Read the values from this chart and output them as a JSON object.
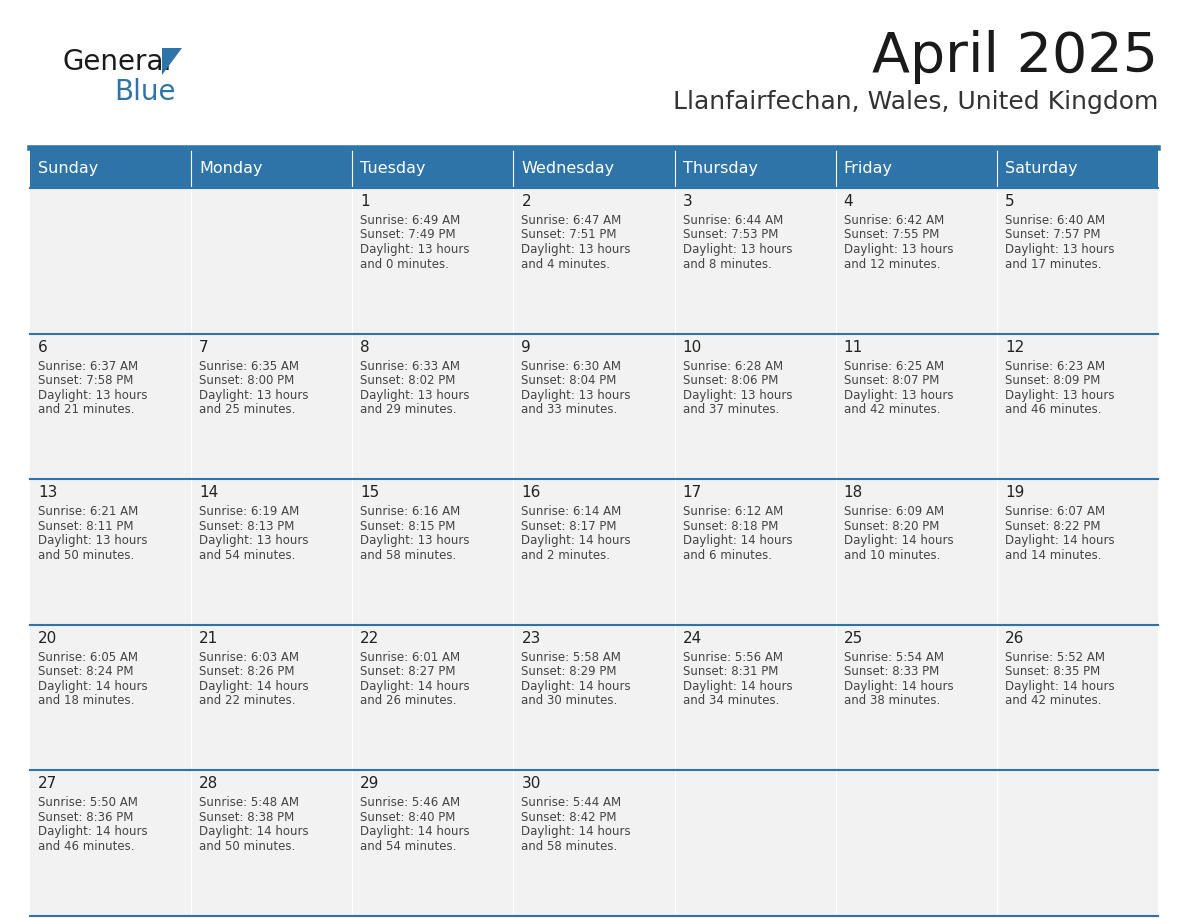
{
  "title": "April 2025",
  "subtitle": "Llanfairfechan, Wales, United Kingdom",
  "days_of_week": [
    "Sunday",
    "Monday",
    "Tuesday",
    "Wednesday",
    "Thursday",
    "Friday",
    "Saturday"
  ],
  "header_bg": "#2E74A8",
  "header_text": "#FFFFFF",
  "cell_bg": "#F2F2F2",
  "cell_text": "#333333",
  "border_color": "#2E74A8",
  "title_color": "#1a1a1a",
  "subtitle_color": "#333333",
  "logo_general_color": "#1a1a1a",
  "logo_blue_color": "#2E74A8",
  "logo_triangle_color": "#2E74A8",
  "weeks": [
    [
      {
        "day": "",
        "sunrise": "",
        "sunset": "",
        "daylight": ""
      },
      {
        "day": "",
        "sunrise": "",
        "sunset": "",
        "daylight": ""
      },
      {
        "day": "1",
        "sunrise": "6:49 AM",
        "sunset": "7:49 PM",
        "daylight": "13 hours and 0 minutes."
      },
      {
        "day": "2",
        "sunrise": "6:47 AM",
        "sunset": "7:51 PM",
        "daylight": "13 hours and 4 minutes."
      },
      {
        "day": "3",
        "sunrise": "6:44 AM",
        "sunset": "7:53 PM",
        "daylight": "13 hours and 8 minutes."
      },
      {
        "day": "4",
        "sunrise": "6:42 AM",
        "sunset": "7:55 PM",
        "daylight": "13 hours and 12 minutes."
      },
      {
        "day": "5",
        "sunrise": "6:40 AM",
        "sunset": "7:57 PM",
        "daylight": "13 hours and 17 minutes."
      }
    ],
    [
      {
        "day": "6",
        "sunrise": "6:37 AM",
        "sunset": "7:58 PM",
        "daylight": "13 hours and 21 minutes."
      },
      {
        "day": "7",
        "sunrise": "6:35 AM",
        "sunset": "8:00 PM",
        "daylight": "13 hours and 25 minutes."
      },
      {
        "day": "8",
        "sunrise": "6:33 AM",
        "sunset": "8:02 PM",
        "daylight": "13 hours and 29 minutes."
      },
      {
        "day": "9",
        "sunrise": "6:30 AM",
        "sunset": "8:04 PM",
        "daylight": "13 hours and 33 minutes."
      },
      {
        "day": "10",
        "sunrise": "6:28 AM",
        "sunset": "8:06 PM",
        "daylight": "13 hours and 37 minutes."
      },
      {
        "day": "11",
        "sunrise": "6:25 AM",
        "sunset": "8:07 PM",
        "daylight": "13 hours and 42 minutes."
      },
      {
        "day": "12",
        "sunrise": "6:23 AM",
        "sunset": "8:09 PM",
        "daylight": "13 hours and 46 minutes."
      }
    ],
    [
      {
        "day": "13",
        "sunrise": "6:21 AM",
        "sunset": "8:11 PM",
        "daylight": "13 hours and 50 minutes."
      },
      {
        "day": "14",
        "sunrise": "6:19 AM",
        "sunset": "8:13 PM",
        "daylight": "13 hours and 54 minutes."
      },
      {
        "day": "15",
        "sunrise": "6:16 AM",
        "sunset": "8:15 PM",
        "daylight": "13 hours and 58 minutes."
      },
      {
        "day": "16",
        "sunrise": "6:14 AM",
        "sunset": "8:17 PM",
        "daylight": "14 hours and 2 minutes."
      },
      {
        "day": "17",
        "sunrise": "6:12 AM",
        "sunset": "8:18 PM",
        "daylight": "14 hours and 6 minutes."
      },
      {
        "day": "18",
        "sunrise": "6:09 AM",
        "sunset": "8:20 PM",
        "daylight": "14 hours and 10 minutes."
      },
      {
        "day": "19",
        "sunrise": "6:07 AM",
        "sunset": "8:22 PM",
        "daylight": "14 hours and 14 minutes."
      }
    ],
    [
      {
        "day": "20",
        "sunrise": "6:05 AM",
        "sunset": "8:24 PM",
        "daylight": "14 hours and 18 minutes."
      },
      {
        "day": "21",
        "sunrise": "6:03 AM",
        "sunset": "8:26 PM",
        "daylight": "14 hours and 22 minutes."
      },
      {
        "day": "22",
        "sunrise": "6:01 AM",
        "sunset": "8:27 PM",
        "daylight": "14 hours and 26 minutes."
      },
      {
        "day": "23",
        "sunrise": "5:58 AM",
        "sunset": "8:29 PM",
        "daylight": "14 hours and 30 minutes."
      },
      {
        "day": "24",
        "sunrise": "5:56 AM",
        "sunset": "8:31 PM",
        "daylight": "14 hours and 34 minutes."
      },
      {
        "day": "25",
        "sunrise": "5:54 AM",
        "sunset": "8:33 PM",
        "daylight": "14 hours and 38 minutes."
      },
      {
        "day": "26",
        "sunrise": "5:52 AM",
        "sunset": "8:35 PM",
        "daylight": "14 hours and 42 minutes."
      }
    ],
    [
      {
        "day": "27",
        "sunrise": "5:50 AM",
        "sunset": "8:36 PM",
        "daylight": "14 hours and 46 minutes."
      },
      {
        "day": "28",
        "sunrise": "5:48 AM",
        "sunset": "8:38 PM",
        "daylight": "14 hours and 50 minutes."
      },
      {
        "day": "29",
        "sunrise": "5:46 AM",
        "sunset": "8:40 PM",
        "daylight": "14 hours and 54 minutes."
      },
      {
        "day": "30",
        "sunrise": "5:44 AM",
        "sunset": "8:42 PM",
        "daylight": "14 hours and 58 minutes."
      },
      {
        "day": "",
        "sunrise": "",
        "sunset": "",
        "daylight": ""
      },
      {
        "day": "",
        "sunrise": "",
        "sunset": "",
        "daylight": ""
      },
      {
        "day": "",
        "sunrise": "",
        "sunset": "",
        "daylight": ""
      }
    ]
  ]
}
